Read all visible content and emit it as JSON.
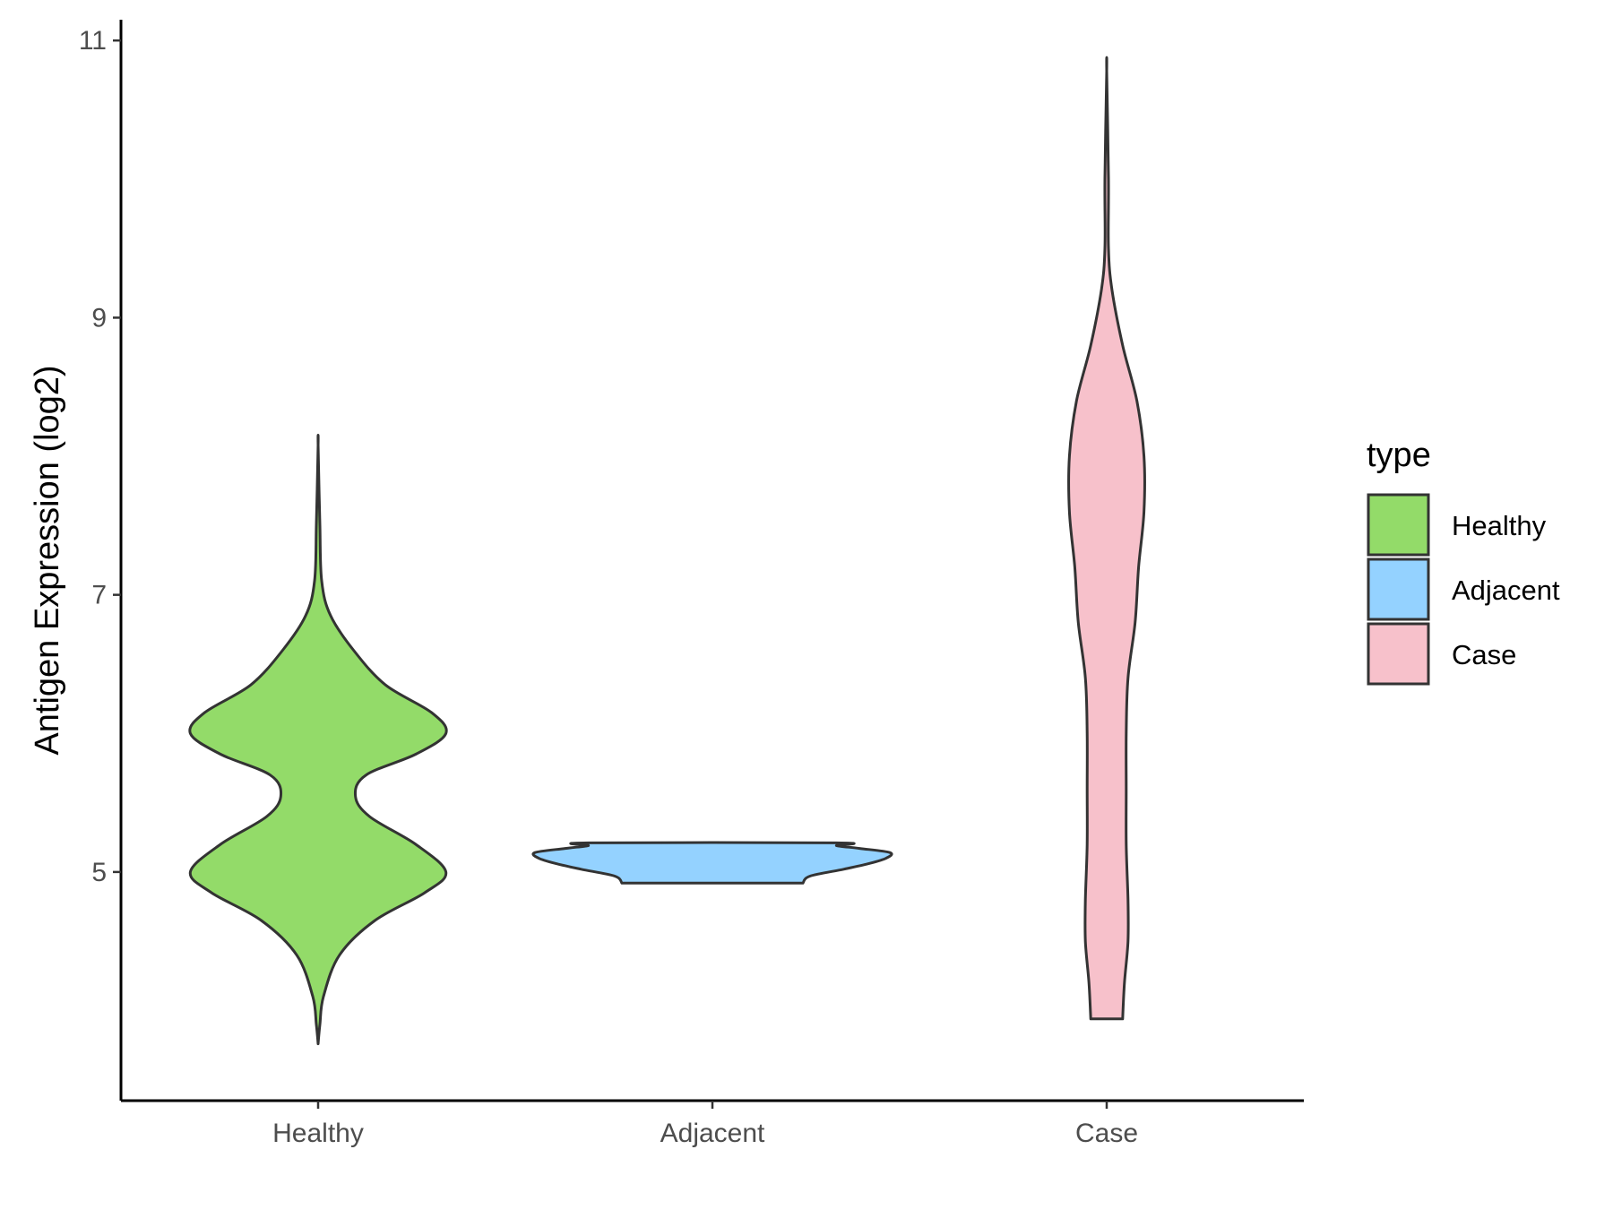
{
  "chart_data": {
    "type": "violin",
    "ylabel": "Antigen Expression (log2)",
    "xlabel": "",
    "ylim": [
      3.35,
      11.15
    ],
    "yticks": [
      5,
      7,
      9,
      11
    ],
    "categories": [
      "Healthy",
      "Adjacent",
      "Case"
    ],
    "legend": {
      "title": "type",
      "position": "right",
      "entries": [
        "Healthy",
        "Adjacent",
        "Case"
      ]
    },
    "grid": false,
    "series": [
      {
        "name": "Healthy",
        "color": "#93DB69",
        "profile": [
          [
            3.76,
            0.0
          ],
          [
            3.9,
            0.01
          ],
          [
            4.1,
            0.03
          ],
          [
            4.4,
            0.12
          ],
          [
            4.65,
            0.32
          ],
          [
            4.85,
            0.6
          ],
          [
            5.0,
            0.72
          ],
          [
            5.2,
            0.55
          ],
          [
            5.4,
            0.29
          ],
          [
            5.55,
            0.21
          ],
          [
            5.7,
            0.27
          ],
          [
            5.85,
            0.55
          ],
          [
            6.0,
            0.72
          ],
          [
            6.15,
            0.64
          ],
          [
            6.35,
            0.38
          ],
          [
            6.6,
            0.2
          ],
          [
            6.85,
            0.07
          ],
          [
            7.1,
            0.02
          ],
          [
            7.5,
            0.01
          ],
          [
            8.08,
            0.0
          ]
        ]
      },
      {
        "name": "Adjacent",
        "color": "#94D2FF",
        "profile": [
          [
            4.92,
            0.51
          ],
          [
            4.97,
            0.55
          ],
          [
            5.02,
            0.74
          ],
          [
            5.06,
            0.88
          ],
          [
            5.1,
            0.98
          ],
          [
            5.14,
            1.0
          ],
          [
            5.17,
            0.83
          ],
          [
            5.19,
            0.7
          ],
          [
            5.21,
            0.7
          ]
        ]
      },
      {
        "name": "Case",
        "color": "#F7C1CB",
        "profile": [
          [
            3.94,
            0.09
          ],
          [
            4.2,
            0.1
          ],
          [
            4.5,
            0.12
          ],
          [
            4.8,
            0.12
          ],
          [
            5.2,
            0.11
          ],
          [
            5.6,
            0.11
          ],
          [
            6.0,
            0.11
          ],
          [
            6.4,
            0.12
          ],
          [
            6.8,
            0.16
          ],
          [
            7.2,
            0.18
          ],
          [
            7.6,
            0.21
          ],
          [
            8.0,
            0.21
          ],
          [
            8.4,
            0.17
          ],
          [
            8.8,
            0.09
          ],
          [
            9.2,
            0.03
          ],
          [
            9.5,
            0.01
          ],
          [
            10.0,
            0.01
          ],
          [
            10.78,
            0.0
          ]
        ]
      }
    ]
  }
}
